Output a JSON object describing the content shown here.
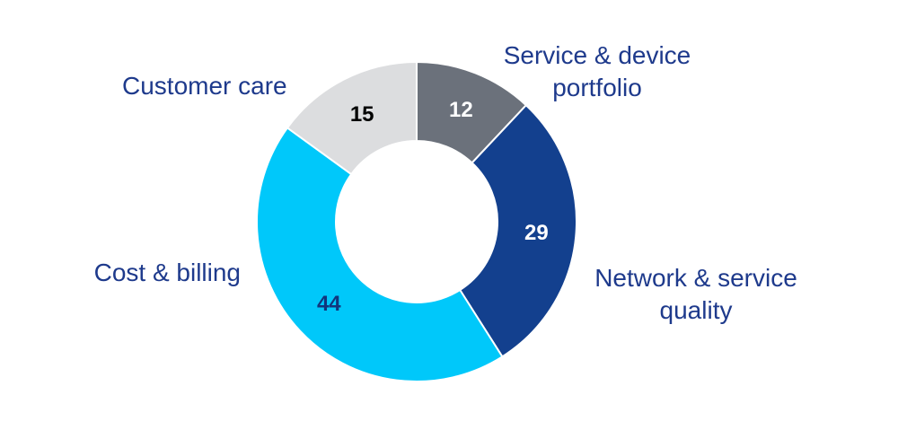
{
  "chart_data": {
    "type": "pie",
    "variant": "donut",
    "slices": [
      {
        "label": "Service & device portfolio",
        "label_lines": [
          "Service & device",
          "portfolio"
        ],
        "value": 12,
        "color": "#6b717b",
        "value_color": "#ffffff"
      },
      {
        "label": "Network & service quality",
        "label_lines": [
          "Network & service",
          "quality"
        ],
        "value": 29,
        "color": "#13408e",
        "value_color": "#ffffff"
      },
      {
        "label": "Cost & billing",
        "label_lines": [
          "Cost & billing"
        ],
        "value": 44,
        "color": "#00c8fa",
        "value_color": "#12357c"
      },
      {
        "label": "Customer care",
        "label_lines": [
          "Customer care"
        ],
        "value": 15,
        "color": "#dcdddf",
        "value_color": "#000000"
      }
    ],
    "label_color": "#1e3a8c"
  }
}
